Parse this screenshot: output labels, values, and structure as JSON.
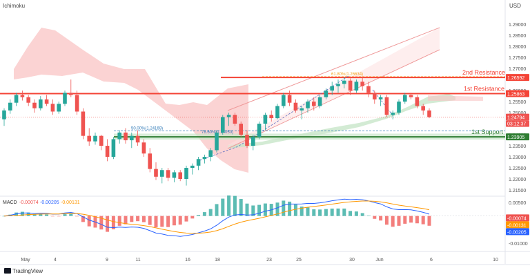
{
  "header": {
    "indicator_label": "Ichimoku",
    "price_axis_label": "USD"
  },
  "footer": {
    "brand": "TradingView"
  },
  "colors": {
    "up_candle": "#26a69a",
    "down_candle": "#ef5350",
    "resistance_line": "#f44336",
    "support_line": "#2e7d32",
    "cloud_bear": "#f9c4c4",
    "cloud_bull": "#c8e6c9",
    "channel": "#ef9a9a",
    "macd_line": "#2962ff",
    "signal_line": "#ff9800",
    "fib_618": "#f5a623",
    "fib_50": "#2b77b6"
  },
  "chart_data": {
    "type": "candlestick",
    "title": "",
    "x_ticks": [
      "May",
      "4",
      "9",
      "11",
      "16",
      "18",
      "23",
      "25",
      "30",
      "Jun",
      "6",
      "10"
    ],
    "y_ticks": [
      "1.29000",
      "1.28500",
      "1.28000",
      "1.27500",
      "1.27000",
      "1.26000",
      "1.25500",
      "1.25000",
      "1.24000",
      "1.23500",
      "1.23000",
      "1.22500",
      "1.22000",
      "1.21500"
    ],
    "ylim": [
      1.2125,
      1.2985
    ],
    "levels": [
      {
        "name": "2nd Resistance",
        "value": 1.26592,
        "label": "1.26592"
      },
      {
        "name": "1st Resistance",
        "value": 1.25863,
        "label": "1.25863"
      },
      {
        "name": "1st Support",
        "value": 1.23905,
        "label": "1.23905"
      }
    ],
    "current_price": {
      "value": 1.24794,
      "label": "1.24794",
      "countdown": "03:12:37"
    },
    "fib_annotations": [
      {
        "text": "61.80%(1.26634)",
        "value": 1.26634
      },
      {
        "text": "50.00%(1.24169)",
        "value": 1.24169
      },
      {
        "text": "78.60%(1.24050)",
        "value": 1.2405
      }
    ],
    "candles": [
      [
        1.247,
        1.252,
        1.244,
        1.251
      ],
      [
        1.251,
        1.256,
        1.2495,
        1.2545
      ],
      [
        1.2545,
        1.259,
        1.253,
        1.258
      ],
      [
        1.258,
        1.26,
        1.2555,
        1.257
      ],
      [
        1.257,
        1.258,
        1.253,
        1.2545
      ],
      [
        1.2545,
        1.256,
        1.25,
        1.252
      ],
      [
        1.252,
        1.2575,
        1.251,
        1.256
      ],
      [
        1.256,
        1.258,
        1.253,
        1.254
      ],
      [
        1.254,
        1.256,
        1.249,
        1.2505
      ],
      [
        1.2505,
        1.255,
        1.2495,
        1.254
      ],
      [
        1.254,
        1.26,
        1.253,
        1.259
      ],
      [
        1.259,
        1.265,
        1.257,
        1.258
      ],
      [
        1.258,
        1.26,
        1.249,
        1.2505
      ],
      [
        1.2505,
        1.252,
        1.238,
        1.2395
      ],
      [
        1.2395,
        1.243,
        1.235,
        1.237
      ],
      [
        1.237,
        1.241,
        1.2355,
        1.2395
      ],
      [
        1.2395,
        1.24,
        1.233,
        1.235
      ],
      [
        1.235,
        1.238,
        1.228,
        1.23
      ],
      [
        1.23,
        1.239,
        1.229,
        1.238
      ],
      [
        1.238,
        1.242,
        1.236,
        1.241
      ],
      [
        1.241,
        1.243,
        1.236,
        1.2375
      ],
      [
        1.2375,
        1.241,
        1.234,
        1.2395
      ],
      [
        1.2395,
        1.242,
        1.235,
        1.2365
      ],
      [
        1.2365,
        1.238,
        1.23,
        1.2315
      ],
      [
        1.2315,
        1.234,
        1.223,
        1.2245
      ],
      [
        1.2245,
        1.2275,
        1.2195,
        1.221
      ],
      [
        1.221,
        1.225,
        1.218,
        1.224
      ],
      [
        1.224,
        1.225,
        1.219,
        1.2205
      ],
      [
        1.2205,
        1.224,
        1.2185,
        1.223
      ],
      [
        1.223,
        1.224,
        1.219,
        1.22
      ],
      [
        1.22,
        1.226,
        1.217,
        1.225
      ],
      [
        1.225,
        1.227,
        1.222,
        1.226
      ],
      [
        1.226,
        1.23,
        1.224,
        1.229
      ],
      [
        1.229,
        1.231,
        1.227,
        1.23
      ],
      [
        1.23,
        1.234,
        1.228,
        1.233
      ],
      [
        1.233,
        1.242,
        1.232,
        1.241
      ],
      [
        1.241,
        1.249,
        1.24,
        1.248
      ],
      [
        1.248,
        1.25,
        1.244,
        1.249
      ],
      [
        1.249,
        1.25,
        1.244,
        1.245
      ],
      [
        1.245,
        1.246,
        1.239,
        1.24
      ],
      [
        1.24,
        1.242,
        1.234,
        1.235
      ],
      [
        1.235,
        1.24,
        1.233,
        1.239
      ],
      [
        1.239,
        1.246,
        1.238,
        1.245
      ],
      [
        1.245,
        1.25,
        1.242,
        1.249
      ],
      [
        1.249,
        1.251,
        1.246,
        1.2475
      ],
      [
        1.2475,
        1.254,
        1.247,
        1.253
      ],
      [
        1.253,
        1.259,
        1.252,
        1.258
      ],
      [
        1.258,
        1.26,
        1.253,
        1.2545
      ],
      [
        1.2545,
        1.256,
        1.25,
        1.251
      ],
      [
        1.251,
        1.253,
        1.247,
        1.252
      ],
      [
        1.252,
        1.256,
        1.25,
        1.255
      ],
      [
        1.255,
        1.257,
        1.251,
        1.253
      ],
      [
        1.253,
        1.258,
        1.252,
        1.257
      ],
      [
        1.257,
        1.261,
        1.256,
        1.26
      ],
      [
        1.26,
        1.264,
        1.258,
        1.262
      ],
      [
        1.262,
        1.265,
        1.259,
        1.263
      ],
      [
        1.263,
        1.266,
        1.261,
        1.2645
      ],
      [
        1.2645,
        1.2655,
        1.258,
        1.26
      ],
      [
        1.26,
        1.265,
        1.259,
        1.264
      ],
      [
        1.264,
        1.266,
        1.26,
        1.262
      ],
      [
        1.262,
        1.264,
        1.257,
        1.259
      ],
      [
        1.259,
        1.26,
        1.254,
        1.256
      ],
      [
        1.256,
        1.258,
        1.253,
        1.257
      ],
      [
        1.257,
        1.258,
        1.248,
        1.249
      ],
      [
        1.249,
        1.251,
        1.247,
        1.25
      ],
      [
        1.25,
        1.256,
        1.249,
        1.255
      ],
      [
        1.255,
        1.259,
        1.254,
        1.258
      ],
      [
        1.258,
        1.259,
        1.256,
        1.257
      ],
      [
        1.257,
        1.258,
        1.252,
        1.253
      ],
      [
        1.253,
        1.254,
        1.249,
        1.251
      ],
      [
        1.251,
        1.252,
        1.2475,
        1.248
      ]
    ],
    "macd": {
      "label": "MACD",
      "values_text": [
        "-0.00074",
        "-0.00205",
        "-0.00131"
      ],
      "y_ticks": [
        "0.00500",
        "0.00000",
        "-0.00500",
        "-0.01000"
      ],
      "badges": [
        "-0.00074",
        "-0.00131",
        "-0.00205"
      ],
      "ylim": [
        -0.0125,
        0.0065
      ]
    },
    "axis_badges": [
      "1.26592",
      "1.25863",
      "1.24794",
      "03:12:37",
      "1.23905"
    ]
  }
}
